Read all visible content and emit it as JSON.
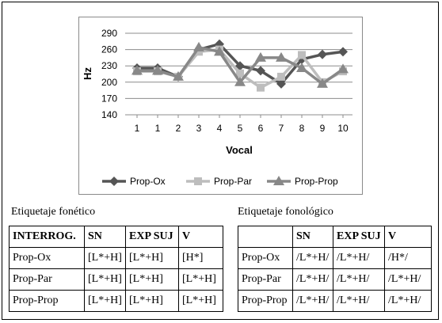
{
  "chart_data": {
    "type": "line",
    "title": "",
    "xlabel": "Vocal",
    "ylabel": "Hz",
    "x": [
      "1",
      "1",
      "2",
      "3",
      "4",
      "5",
      "6",
      "7",
      "8",
      "9",
      "10"
    ],
    "ylim": [
      140,
      290
    ],
    "yticks": [
      140,
      170,
      200,
      230,
      260,
      290
    ],
    "grid": "horizontal",
    "legend": "bottom",
    "series": [
      {
        "name": "Prop-Ox",
        "color": "#555555",
        "marker": "diamond",
        "values": [
          226,
          226,
          210,
          260,
          270,
          230,
          221,
          197,
          242,
          251,
          256
        ]
      },
      {
        "name": "Prop-Par",
        "color": "#bdbdbd",
        "marker": "square",
        "values": [
          220,
          220,
          210,
          256,
          260,
          216,
          190,
          210,
          250,
          200,
          220
        ]
      },
      {
        "name": "Prop-Prop",
        "color": "#888888",
        "marker": "triangle",
        "values": [
          221,
          221,
          210,
          264,
          256,
          200,
          245,
          245,
          226,
          197,
          224
        ]
      }
    ]
  },
  "captions": {
    "left": "Etiquetaje fonético",
    "right": "Etiquetaje fonológico"
  },
  "table_phonetic": {
    "header": [
      "INTERROG.",
      "SN",
      "EXP SUJ",
      "V"
    ],
    "rows": [
      [
        "Prop-Ox",
        "[L*+H]",
        "[L*+H]",
        "[H*]"
      ],
      [
        "Prop-Par",
        "[L*+H]",
        "[L*+H]",
        "[L*+H]"
      ],
      [
        "Prop-Prop",
        "[L*+H]",
        "[L*+H]",
        "[L*+H]"
      ]
    ]
  },
  "table_phonological": {
    "header": [
      "",
      "SN",
      "EXP SUJ",
      "V"
    ],
    "rows": [
      [
        "Prop-Ox",
        "/L*+H/",
        "/L*+H/",
        "/H*/"
      ],
      [
        "Prop-Par",
        "/L*+H/",
        "/L*+H/",
        "/L*+H/"
      ],
      [
        "Prop-Prop",
        "/L*+H/",
        "/L*+H/",
        "/L*+H/"
      ]
    ]
  }
}
